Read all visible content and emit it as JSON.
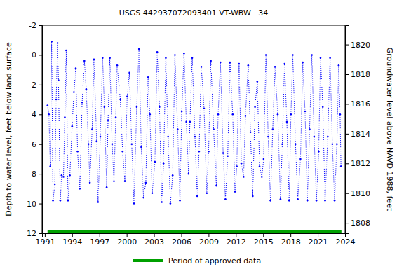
{
  "chart_data": {
    "type": "line",
    "title": "USGS 442937072093401 VT-WBW   34",
    "y_label": "Depth to water level, feet below land surface",
    "y2_label": "Groundwater level above NAVD 1988, feet",
    "xlim": [
      1990.7,
      2024.0
    ],
    "xticks": [
      1991,
      1994,
      1997,
      2000,
      2003,
      2006,
      2009,
      2012,
      2015,
      2018,
      2021,
      2024
    ],
    "ylim": [
      12,
      -2
    ],
    "yticks": [
      -2,
      0,
      2,
      4,
      6,
      8,
      10,
      12
    ],
    "y2lim": [
      1807.3,
      1821.3
    ],
    "y2ticks": [
      1808,
      1810,
      1812,
      1814,
      1816,
      1818,
      1820
    ],
    "grid": false,
    "legend": "bottom",
    "series": [
      {
        "color": "#0000ff",
        "marker": "circle",
        "line_style": "dotted",
        "x": [
          1991.3,
          1991.45,
          1991.6,
          1991.75,
          1991.9,
          1992.1,
          1992.25,
          1992.4,
          1992.5,
          1992.7,
          1992.85,
          1993.05,
          1993.2,
          1993.35,
          1993.55,
          1993.75,
          1994.0,
          1994.2,
          1994.4,
          1994.6,
          1994.85,
          1995.1,
          1995.35,
          1995.55,
          1995.8,
          1995.95,
          1996.2,
          1996.4,
          1996.7,
          1996.85,
          1997.1,
          1997.35,
          1997.55,
          1997.8,
          1997.95,
          1998.15,
          1998.4,
          1998.6,
          1998.8,
          1998.95,
          1999.3,
          1999.55,
          1999.8,
          2000.05,
          2000.3,
          2000.55,
          2000.8,
          2001.1,
          2001.35,
          2001.6,
          2001.85,
          2002.1,
          2002.35,
          2002.55,
          2002.8,
          2003.1,
          2003.35,
          2003.6,
          2003.85,
          2004.05,
          2004.3,
          2004.55,
          2004.8,
          2005.05,
          2005.3,
          2005.6,
          2005.85,
          2006.05,
          2006.3,
          2006.55,
          2006.8,
          2006.95,
          2007.2,
          2007.5,
          2007.75,
          2007.95,
          2008.2,
          2008.5,
          2008.8,
          2009.0,
          2009.25,
          2009.55,
          2009.85,
          2010.05,
          2010.3,
          2010.6,
          2010.85,
          2011.1,
          2011.35,
          2011.65,
          2011.9,
          2012.1,
          2012.35,
          2012.6,
          2012.85,
          2013.05,
          2013.35,
          2013.6,
          2013.85,
          2014.1,
          2014.35,
          2014.6,
          2014.85,
          2015.05,
          2015.3,
          2015.55,
          2015.8,
          2016.05,
          2016.3,
          2016.6,
          2016.9,
          2017.1,
          2017.35,
          2017.6,
          2017.85,
          2018.05,
          2018.25,
          2018.55,
          2018.8,
          2019.1,
          2019.35,
          2019.6,
          2019.85,
          2020.1,
          2020.35,
          2020.6,
          2020.85,
          2021.1,
          2021.3,
          2021.55,
          2021.8,
          2022.1,
          2022.35,
          2022.6,
          2022.85,
          2023.1,
          2023.3,
          2023.45,
          2023.55
        ],
        "values": [
          3.4,
          4.0,
          7.5,
          -0.9,
          9.8,
          8.7,
          3.0,
          -0.8,
          1.7,
          9.8,
          8.1,
          8.2,
          4.2,
          -0.3,
          9.8,
          8.1,
          4.8,
          2.5,
          0.9,
          6.5,
          9.0,
          3.2,
          0.4,
          2.3,
          6.0,
          8.6,
          5.0,
          0.3,
          5.8,
          9.9,
          5.5,
          0.2,
          3.5,
          8.9,
          4.4,
          0.2,
          6.0,
          8.5,
          4.2,
          0.7,
          3.0,
          6.5,
          8.5,
          2.8,
          1.2,
          6.0,
          10.0,
          3.5,
          -0.4,
          6.2,
          9.6,
          8.6,
          1.5,
          4.0,
          9.3,
          7.2,
          -0.2,
          3.5,
          9.9,
          7.3,
          0.2,
          5.5,
          10.0,
          8.1,
          0.0,
          5.0,
          9.8,
          3.8,
          -0.1,
          4.5,
          8.0,
          4.5,
          0.2,
          5.5,
          9.5,
          6.5,
          0.8,
          3.6,
          9.3,
          6.5,
          0.4,
          5.0,
          8.8,
          4.0,
          0.5,
          6.6,
          9.7,
          6.8,
          0.5,
          4.0,
          9.2,
          7.5,
          0.6,
          7.3,
          8.2,
          4.1,
          0.7,
          5.2,
          9.5,
          3.5,
          1.8,
          7.5,
          8.2,
          7.0,
          0.0,
          5.5,
          9.8,
          5.0,
          0.8,
          4.0,
          9.7,
          6.0,
          0.6,
          4.5,
          9.8,
          4.0,
          0.0,
          6.0,
          9.7,
          7.0,
          0.5,
          3.8,
          9.8,
          5.0,
          0.0,
          5.5,
          9.8,
          6.5,
          0.2,
          3.5,
          9.8,
          5.5,
          0.2,
          6.0,
          9.8,
          6.0,
          0.7,
          4.0,
          7.5
        ]
      },
      {
        "name": "Period of approved data",
        "color": "#00a000",
        "line_style": "solid",
        "x": [
          1991.3,
          2023.6
        ],
        "values": [
          11.9,
          11.9
        ]
      }
    ]
  }
}
